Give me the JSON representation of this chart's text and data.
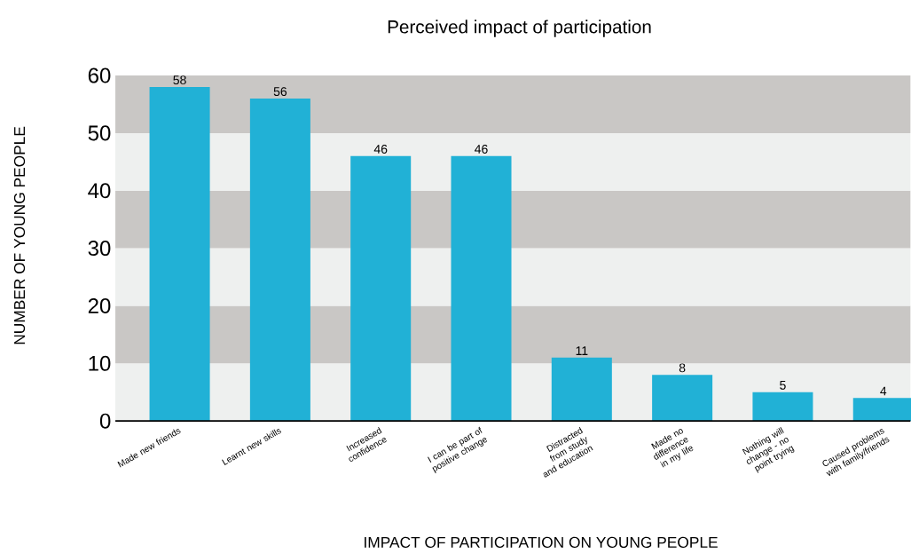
{
  "chart_data": {
    "type": "bar",
    "title": "Perceived impact of participation",
    "xlabel": "IMPACT OF PARTICIPATION ON YOUNG PEOPLE",
    "ylabel": "NUMBER OF YOUNG PEOPLE",
    "categories": [
      "Made new friends",
      "Learnt new skills",
      "Increased confidence",
      "I can be part of positive change",
      "Distracted from study and education",
      "Made no difference in my life",
      "Nothing will change - no point trying",
      "Caused problems with family/friends"
    ],
    "values": [
      58,
      56,
      46,
      46,
      11,
      8,
      5,
      4
    ],
    "color": "#21b1d6",
    "ylim": [
      0,
      60
    ],
    "yticks": [
      0,
      10,
      20,
      30,
      40,
      50,
      60
    ],
    "data_labels": true,
    "grid": false,
    "bands": [
      {
        "axis": "y",
        "from": 0,
        "to": 10,
        "color": "#eef0ef"
      },
      {
        "axis": "y",
        "from": 10,
        "to": 20,
        "color": "#c9c7c5"
      },
      {
        "axis": "y",
        "from": 20,
        "to": 30,
        "color": "#eef0ef"
      },
      {
        "axis": "y",
        "from": 30,
        "to": 40,
        "color": "#c9c7c5"
      },
      {
        "axis": "y",
        "from": 40,
        "to": 50,
        "color": "#eef0ef"
      },
      {
        "axis": "y",
        "from": 50,
        "to": 60,
        "color": "#c9c7c5"
      }
    ]
  }
}
